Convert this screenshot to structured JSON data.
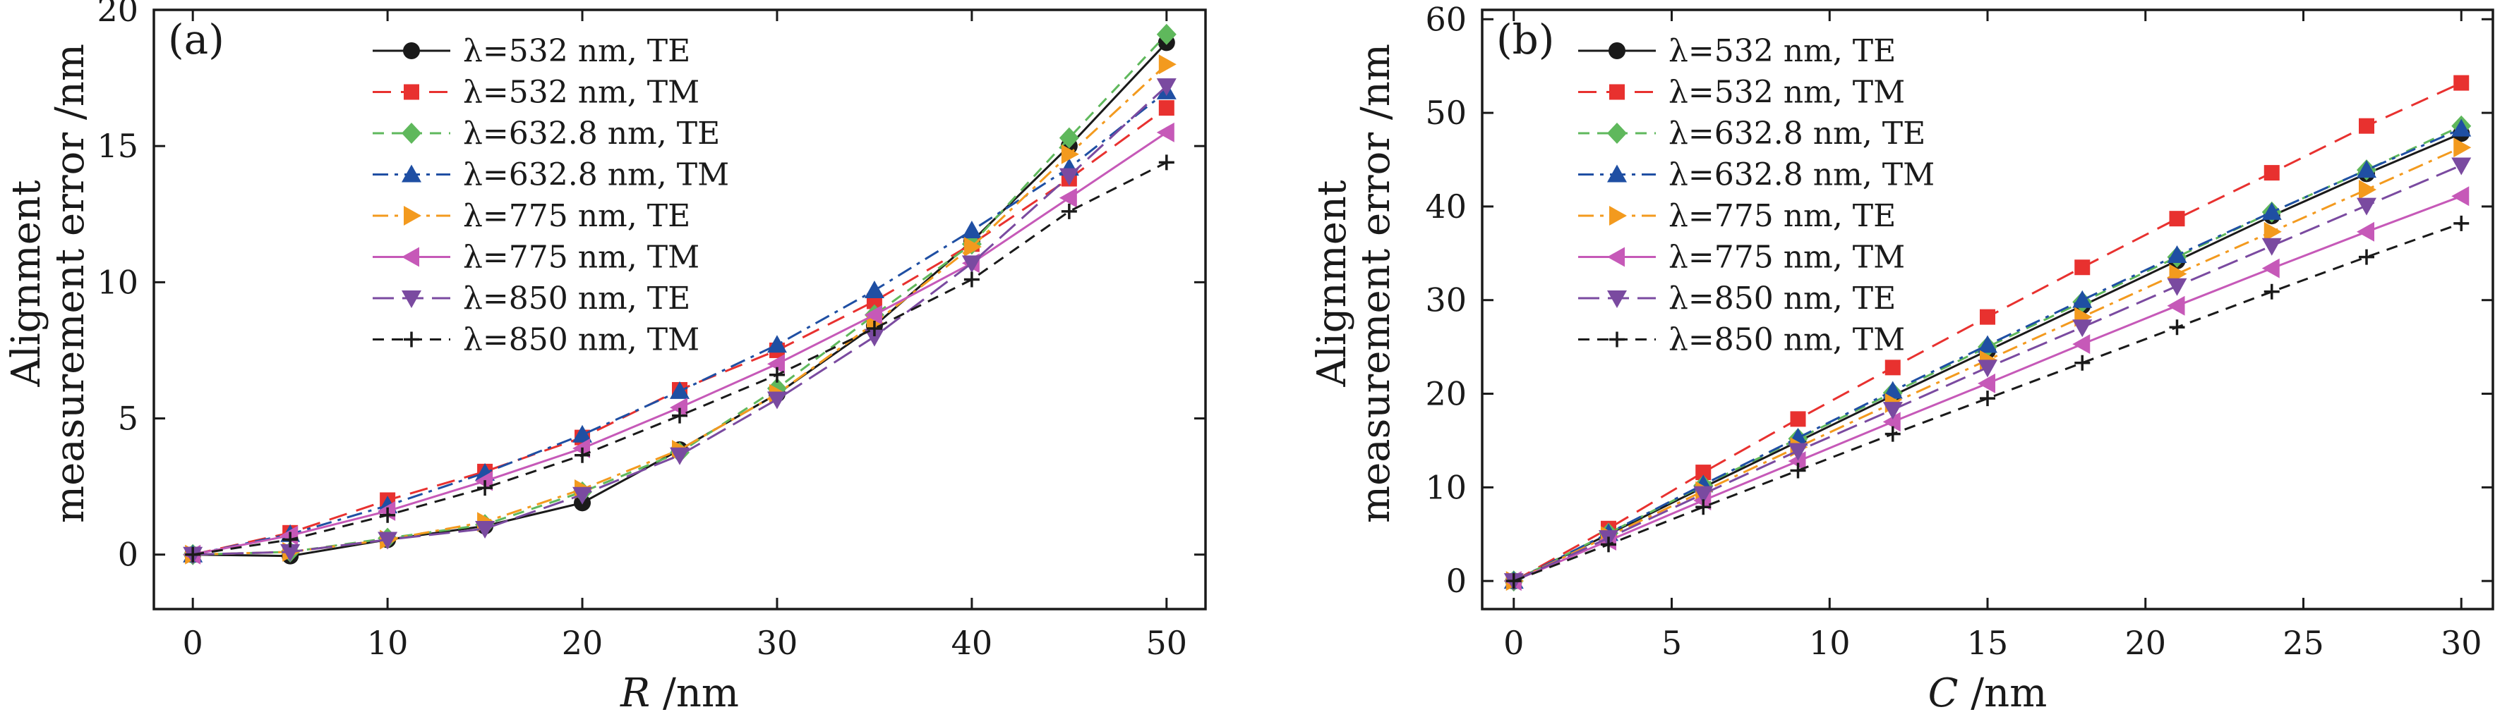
{
  "chart_data": [
    {
      "type": "line",
      "panel_label": "(a)",
      "xlabel_var": "R",
      "xlabel_unit": " /nm",
      "ylabel_line1": "Alignment",
      "ylabel_line2": "measurement error /nm",
      "xlim": [
        -2,
        52
      ],
      "ylim": [
        -2,
        20
      ],
      "xticks": [
        0,
        10,
        20,
        30,
        40,
        50
      ],
      "yticks": [
        0,
        5,
        10,
        15,
        20
      ],
      "x": [
        0,
        5,
        10,
        15,
        20,
        25,
        30,
        35,
        40,
        45,
        50
      ],
      "legend_position": "top-center",
      "series": [
        {
          "name": "λ=532 nm, TE",
          "color": "#1a1a1a",
          "dash": "solid",
          "marker": "circle",
          "values": [
            0,
            -0.05,
            0.55,
            1.05,
            1.9,
            3.85,
            5.9,
            8.4,
            11.5,
            15.0,
            18.8
          ]
        },
        {
          "name": "λ=532 nm, TM",
          "color": "#e8312f",
          "dash": "long",
          "marker": "square",
          "values": [
            0,
            0.8,
            2.0,
            3.05,
            4.3,
            6.05,
            7.5,
            9.3,
            11.4,
            13.8,
            16.4
          ]
        },
        {
          "name": "λ=632.8 nm, TE",
          "color": "#5fb85c",
          "dash": "dash",
          "marker": "diamond",
          "values": [
            0,
            0.1,
            0.6,
            1.1,
            2.3,
            3.75,
            6.1,
            8.8,
            11.4,
            15.3,
            19.1
          ]
        },
        {
          "name": "λ=632.8 nm, TM",
          "color": "#1f4fa3",
          "dash": "dashdot",
          "marker": "triangle-up",
          "values": [
            0,
            0.75,
            1.8,
            3.0,
            4.4,
            6.0,
            7.7,
            9.7,
            11.9,
            14.2,
            17.0
          ]
        },
        {
          "name": "λ=775 nm, TE",
          "color": "#f39a1e",
          "dash": "dashdot",
          "marker": "triangle-right",
          "values": [
            0,
            0.1,
            0.55,
            1.2,
            2.4,
            3.85,
            5.9,
            8.5,
            11.3,
            14.7,
            18.0
          ]
        },
        {
          "name": "λ=775 nm, TM",
          "color": "#c659b8",
          "dash": "solid",
          "marker": "triangle-left",
          "values": [
            0,
            0.7,
            1.6,
            2.7,
            3.9,
            5.4,
            7.0,
            8.8,
            10.7,
            13.1,
            15.5
          ]
        },
        {
          "name": "λ=850 nm, TE",
          "color": "#7a4aa0",
          "dash": "longdash",
          "marker": "triangle-down",
          "values": [
            0,
            0.1,
            0.55,
            0.95,
            2.2,
            3.65,
            5.7,
            8.0,
            10.7,
            13.9,
            17.2
          ]
        },
        {
          "name": "λ=850 nm, TM",
          "color": "#1a1a1a",
          "dash": "dash",
          "marker": "plus",
          "values": [
            0,
            0.55,
            1.45,
            2.45,
            3.65,
            5.1,
            6.6,
            8.3,
            10.1,
            12.6,
            14.4
          ]
        }
      ]
    },
    {
      "type": "line",
      "panel_label": "(b)",
      "xlabel_var": "C",
      "xlabel_unit": " /nm",
      "ylabel_line1": "Alignment",
      "ylabel_line2": "measurement error /nm",
      "xlim": [
        -1,
        31
      ],
      "ylim": [
        -3,
        61
      ],
      "xticks": [
        0,
        5,
        10,
        15,
        20,
        25,
        30
      ],
      "yticks": [
        0,
        10,
        20,
        30,
        40,
        50,
        60
      ],
      "x": [
        0,
        3,
        6,
        9,
        12,
        15,
        18,
        21,
        24,
        27,
        30
      ],
      "legend_position": "top-left",
      "series": [
        {
          "name": "λ=532 nm, TE",
          "color": "#1a1a1a",
          "dash": "solid",
          "marker": "circle",
          "values": [
            0,
            5.0,
            10.0,
            14.9,
            19.8,
            24.6,
            29.4,
            34.2,
            39.0,
            43.5,
            47.8
          ]
        },
        {
          "name": "λ=532 nm, TM",
          "color": "#e8312f",
          "dash": "long",
          "marker": "square",
          "values": [
            0,
            5.6,
            11.6,
            17.3,
            22.8,
            28.2,
            33.5,
            38.7,
            43.6,
            48.6,
            53.2
          ]
        },
        {
          "name": "λ=632.8 nm, TE",
          "color": "#5fb85c",
          "dash": "dash",
          "marker": "diamond",
          "values": [
            0,
            5.1,
            10.2,
            15.2,
            20.1,
            25.0,
            29.8,
            34.6,
            39.4,
            43.9,
            48.6
          ]
        },
        {
          "name": "λ=632.8 nm, TM",
          "color": "#1f4fa3",
          "dash": "dashdot",
          "marker": "triangle-up",
          "values": [
            0,
            5.1,
            10.3,
            15.3,
            20.3,
            25.2,
            30.0,
            34.8,
            39.4,
            43.9,
            48.3
          ]
        },
        {
          "name": "λ=775 nm, TE",
          "color": "#f39a1e",
          "dash": "dashdot",
          "marker": "triangle-right",
          "values": [
            0,
            4.8,
            9.6,
            14.3,
            19.0,
            23.6,
            28.2,
            32.8,
            37.3,
            41.8,
            46.3
          ]
        },
        {
          "name": "λ=775 nm, TM",
          "color": "#c659b8",
          "dash": "solid",
          "marker": "triangle-left",
          "values": [
            0,
            4.3,
            8.6,
            12.8,
            17.0,
            21.1,
            25.3,
            29.4,
            33.4,
            37.3,
            41.1
          ]
        },
        {
          "name": "λ=850 nm, TE",
          "color": "#7a4aa0",
          "dash": "longdash",
          "marker": "triangle-down",
          "values": [
            0,
            4.6,
            9.3,
            13.9,
            18.3,
            22.8,
            27.1,
            31.5,
            35.8,
            40.1,
            44.4
          ]
        },
        {
          "name": "λ=850 nm, TM",
          "color": "#1a1a1a",
          "dash": "dash",
          "marker": "plus",
          "values": [
            0,
            3.9,
            7.9,
            11.8,
            15.7,
            19.5,
            23.3,
            27.1,
            30.9,
            34.6,
            38.2
          ]
        }
      ]
    }
  ]
}
